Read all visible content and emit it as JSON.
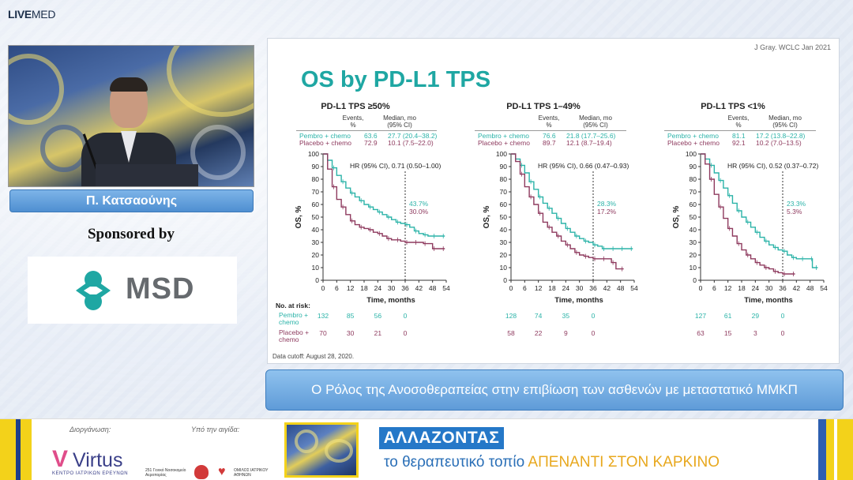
{
  "brand": {
    "logo_live": "LIVE",
    "logo_med": "MED"
  },
  "speaker": {
    "name": "Π. Κατσαούνης"
  },
  "sponsor": {
    "label": "Sponsored by",
    "name": "MSD"
  },
  "slide": {
    "citation": "J Gray. WCLC Jan 2021",
    "title": "OS by PD-L1 TPS",
    "cutoff": "Data cutoff: August 28, 2020.",
    "legend_headers": {
      "events": "Events,\n%",
      "median": "Median, mo\n(95% CI)"
    },
    "risk_label": "No. at risk:",
    "risk_row_labels": [
      "Pembro +\nchemo",
      "Placebo +\nchemo"
    ],
    "colors": {
      "pembro": "#2bb3a8",
      "placebo": "#8e3a5e",
      "dash": "#333333"
    }
  },
  "chart_data": [
    {
      "type": "line",
      "title": "PD-L1 TPS ≥50%",
      "xlabel": "Time, months",
      "ylabel": "OS, %",
      "xlim": [
        0,
        54
      ],
      "ylim": [
        0,
        100
      ],
      "x_ticks": [
        0,
        6,
        12,
        18,
        24,
        30,
        36,
        42,
        48,
        54
      ],
      "y_ticks": [
        0,
        10,
        20,
        30,
        40,
        50,
        60,
        70,
        80,
        90,
        100
      ],
      "hr": "HR (95% CI), 0.71 (0.50–1.00)",
      "series": [
        {
          "name": "Pembro + chemo",
          "events": "63.6",
          "median": "27.7 (20.4–38.2)",
          "landmark": "43.7%",
          "x": [
            0,
            2,
            4,
            6,
            8,
            10,
            12,
            14,
            16,
            18,
            20,
            22,
            24,
            26,
            28,
            30,
            32,
            34,
            36,
            38,
            40,
            42,
            44,
            46,
            48,
            50,
            52
          ],
          "y": [
            100,
            95,
            89,
            83,
            78,
            73,
            69,
            66,
            63,
            60,
            58,
            56,
            54,
            52,
            50,
            48,
            46,
            45,
            44,
            42,
            39,
            37,
            36,
            35,
            35,
            35,
            35
          ]
        },
        {
          "name": "Placebo + chemo",
          "events": "72.9",
          "median": "10.1 (7.5–22.0)",
          "landmark": "30.0%",
          "x": [
            0,
            2,
            4,
            6,
            8,
            10,
            12,
            14,
            16,
            18,
            20,
            22,
            24,
            26,
            28,
            30,
            32,
            34,
            36,
            38,
            40,
            42,
            44,
            46,
            48,
            50,
            52
          ],
          "y": [
            100,
            88,
            74,
            64,
            58,
            52,
            47,
            44,
            42,
            41,
            40,
            38,
            37,
            35,
            33,
            32,
            32,
            31,
            30,
            30,
            30,
            30,
            29,
            29,
            25,
            25,
            25
          ]
        }
      ],
      "at_risk": {
        "times": [
          0,
          12,
          24,
          36
        ],
        "pembro": [
          132,
          85,
          56,
          0
        ],
        "placebo": [
          70,
          30,
          21,
          0
        ]
      }
    },
    {
      "type": "line",
      "title": "PD-L1 TPS 1–49%",
      "xlabel": "Time, months",
      "ylabel": "OS, %",
      "xlim": [
        0,
        54
      ],
      "ylim": [
        0,
        100
      ],
      "x_ticks": [
        0,
        6,
        12,
        18,
        24,
        30,
        36,
        42,
        48,
        54
      ],
      "y_ticks": [
        0,
        10,
        20,
        30,
        40,
        50,
        60,
        70,
        80,
        90,
        100
      ],
      "hr": "HR (95% CI), 0.66 (0.47–0.93)",
      "series": [
        {
          "name": "Pembro + chemo",
          "events": "76.6",
          "median": "21.8 (17.7–25.6)",
          "landmark": "28.3%",
          "x": [
            0,
            2,
            4,
            6,
            8,
            10,
            12,
            14,
            16,
            18,
            20,
            22,
            24,
            26,
            28,
            30,
            32,
            34,
            36,
            38,
            40,
            42,
            44,
            46,
            48,
            50,
            52
          ],
          "y": [
            100,
            96,
            91,
            85,
            78,
            72,
            66,
            61,
            57,
            53,
            49,
            45,
            41,
            38,
            35,
            33,
            31,
            30,
            28,
            27,
            25,
            25,
            25,
            25,
            25,
            25,
            25
          ]
        },
        {
          "name": "Placebo + chemo",
          "events": "89.7",
          "median": "12.1 (8.7–19.4)",
          "landmark": "17.2%",
          "x": [
            0,
            2,
            4,
            6,
            8,
            10,
            12,
            14,
            16,
            18,
            20,
            22,
            24,
            26,
            28,
            30,
            32,
            34,
            36,
            38,
            40,
            42,
            44,
            46,
            48
          ],
          "y": [
            100,
            94,
            84,
            74,
            66,
            60,
            53,
            46,
            42,
            38,
            35,
            31,
            28,
            25,
            22,
            20,
            19,
            18,
            17,
            17,
            17,
            17,
            14,
            9,
            9
          ]
        }
      ],
      "at_risk": {
        "times": [
          0,
          12,
          24,
          36
        ],
        "pembro": [
          128,
          74,
          35,
          0
        ],
        "placebo": [
          58,
          22,
          9,
          0
        ]
      }
    },
    {
      "type": "line",
      "title": "PD-L1 TPS <1%",
      "xlabel": "Time, months",
      "ylabel": "OS, %",
      "xlim": [
        0,
        54
      ],
      "ylim": [
        0,
        100
      ],
      "x_ticks": [
        0,
        6,
        12,
        18,
        24,
        30,
        36,
        42,
        48,
        54
      ],
      "y_ticks": [
        0,
        10,
        20,
        30,
        40,
        50,
        60,
        70,
        80,
        90,
        100
      ],
      "hr": "HR (95% CI), 0.52 (0.37–0.72)",
      "series": [
        {
          "name": "Pembro + chemo",
          "events": "81.1",
          "median": "17.2 (13.8–22.8)",
          "landmark": "23.3%",
          "x": [
            0,
            2,
            4,
            6,
            8,
            10,
            12,
            14,
            16,
            18,
            20,
            22,
            24,
            26,
            28,
            30,
            32,
            34,
            36,
            38,
            40,
            42,
            44,
            46,
            48,
            49,
            50
          ],
          "y": [
            100,
            96,
            91,
            85,
            79,
            73,
            67,
            61,
            55,
            50,
            46,
            42,
            38,
            34,
            31,
            28,
            26,
            24,
            23,
            20,
            18,
            17,
            17,
            17,
            17,
            10,
            10
          ]
        },
        {
          "name": "Placebo + chemo",
          "events": "92.1",
          "median": "10.2 (7.0–13.5)",
          "landmark": "5.3%",
          "x": [
            0,
            2,
            4,
            6,
            8,
            10,
            12,
            14,
            16,
            18,
            20,
            22,
            24,
            26,
            28,
            30,
            32,
            34,
            36,
            38,
            40
          ],
          "y": [
            100,
            92,
            80,
            68,
            58,
            49,
            41,
            35,
            29,
            24,
            20,
            17,
            14,
            12,
            10,
            9,
            7,
            6,
            5,
            5,
            5
          ]
        }
      ],
      "at_risk": {
        "times": [
          0,
          12,
          24,
          36
        ],
        "pembro": [
          127,
          61,
          29,
          0
        ],
        "placebo": [
          63,
          15,
          3,
          0
        ]
      }
    }
  ],
  "banner": {
    "text": "Ο Ρόλος της Ανοσοθεραπείας στην επιβίωση των ασθενών με μεταστατικό ΜΜΚΠ"
  },
  "footer": {
    "org_label": "Διοργάνωση:",
    "org_name": "Virtus",
    "org_sub": "ΚΕΝΤΡΟ ΙΑΤΡΙΚΩΝ ΕΡΕΥΝΩΝ",
    "aegis_label": "Υπό την αιγίδα:",
    "aegis_1": "251 Γενικό Νοσοκομείο Αεροπορίας",
    "aegis_2": "ΟΜΙΛΟΣ ΙΑΤΡΙΚΟΥ ΑΘΗΝΩΝ",
    "headline": "ΑΛΛΑΖΟΝΤΑΣ",
    "tagline_a": "το θεραπευτικό τοπίο ",
    "tagline_b": "ΑΠΕΝΑΝΤΙ ΣΤΟΝ ΚΑΡΚΙΝΟ"
  }
}
